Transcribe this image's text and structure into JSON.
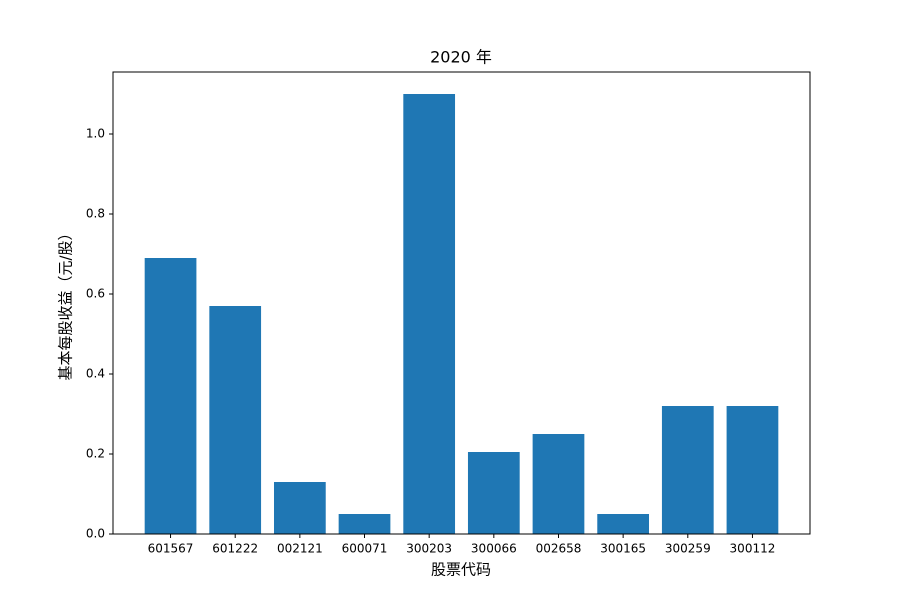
{
  "chart_data": {
    "type": "bar",
    "title": "2020 年",
    "x_label": "股票代码",
    "y_label": "基本每股收益（元/股）",
    "categories": [
      "601567",
      "601222",
      "002121",
      "600071",
      "300203",
      "300066",
      "002658",
      "300165",
      "300259",
      "300112"
    ],
    "values": [
      0.69,
      0.57,
      0.13,
      0.05,
      1.1,
      0.205,
      0.25,
      0.05,
      0.32,
      0.32
    ],
    "color": "#1f77b4",
    "ylim": [
      0,
      1.155
    ],
    "yticks": [
      {
        "value": 0,
        "label": "0.0"
      },
      {
        "value": 0.2,
        "label": "0.2"
      },
      {
        "value": 0.4,
        "label": "0.4"
      },
      {
        "value": 0.6,
        "label": "0.6"
      },
      {
        "value": 0.8,
        "label": "0.8"
      },
      {
        "value": 1,
        "label": "1.0"
      }
    ],
    "grid": false
  }
}
